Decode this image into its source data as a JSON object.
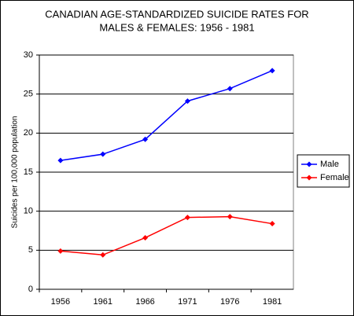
{
  "chart_data": {
    "type": "line",
    "title": [
      "CANADIAN AGE-STANDARDIZED SUICIDE RATES FOR",
      "MALES & FEMALES: 1956 - 1981"
    ],
    "y_label": "Suicides per 100,000 population",
    "categories": [
      "1956",
      "1961",
      "1966",
      "1971",
      "1976",
      "1981"
    ],
    "series": [
      {
        "name": "Male",
        "color": "#0000ff",
        "values": [
          16.5,
          17.3,
          19.2,
          24.1,
          25.7,
          28.0
        ]
      },
      {
        "name": "Female",
        "color": "#ff0000",
        "values": [
          4.9,
          4.4,
          6.6,
          9.2,
          9.3,
          8.4
        ]
      }
    ],
    "ylim": [
      0,
      30
    ],
    "yticks": [
      0,
      5,
      10,
      15,
      20,
      25,
      30
    ],
    "grid": true,
    "legend": "right"
  }
}
